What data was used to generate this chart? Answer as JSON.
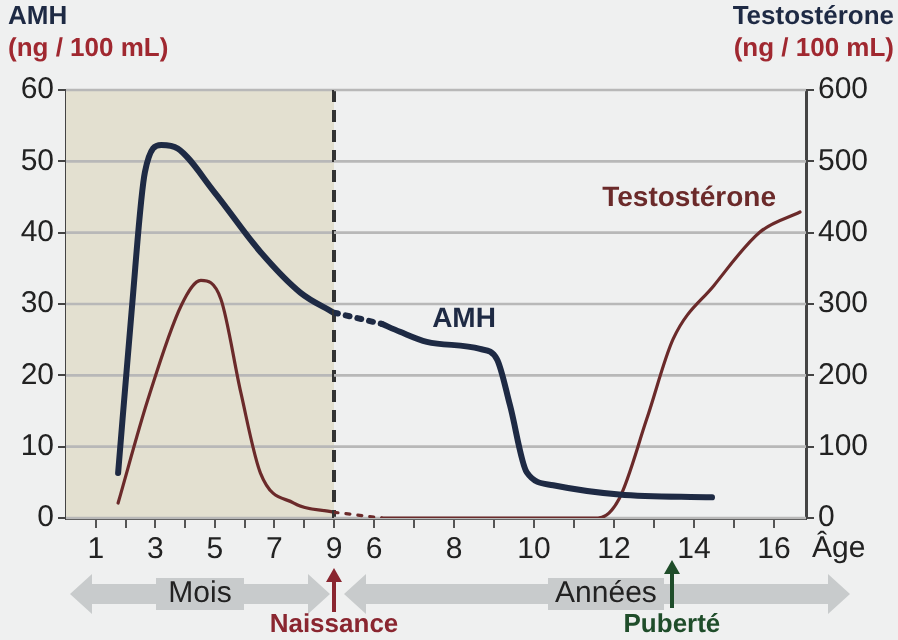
{
  "chart_data": [
    {
      "type": "line",
      "ylabel": "AMH\n(ng / 100 mL)",
      "marker": "none",
      "grid": "y",
      "xlim": [
        0,
        9
      ],
      "xticks": [
        1,
        {
          "value": 2,
          "label": null
        },
        3,
        {
          "value": 4,
          "label": null
        },
        5,
        {
          "value": 6,
          "label": null
        },
        7,
        {
          "value": 8,
          "label": null
        },
        9
      ],
      "ylim": [
        0,
        60
      ],
      "yticks": [
        0,
        10,
        20,
        30,
        40,
        50,
        60
      ],
      "y2lim": [
        0,
        600
      ],
      "bands": [
        {
          "axis": "x",
          "from": 0,
          "to": 9,
          "color": "#e3e0d0"
        }
      ],
      "ref_lines": [
        {
          "axis": "x",
          "value": 9,
          "color": "#333333",
          "line_style": "dashed"
        }
      ],
      "annotations": [
        "Mois"
      ],
      "series": [
        {
          "color": "#1e2a44",
          "line_style": "solid",
          "x": [
            1.75,
            2.2,
            2.65,
            3.2,
            3.75,
            4.98,
            6.53,
            7.87,
            8.98
          ],
          "values": [
            6.3,
            28.8,
            48.5,
            52.3,
            51.8,
            45.7,
            37.3,
            31.6,
            28.8
          ]
        },
        {
          "color": "#6b2a2a",
          "axis": "y2",
          "line_style": "solid",
          "x": [
            1.75,
            2.75,
            3.87,
            4.53,
            5.2,
            5.87,
            6.53,
            7.65,
            8.98
          ],
          "values": [
            21,
            166,
            298,
            333,
            307,
            176,
            63,
            21,
            8
          ]
        }
      ]
    },
    {
      "type": "line",
      "y2label": "Testostérone\n(ng / 100 mL)",
      "xlabel": "Âge",
      "marker": "none",
      "grid": "y",
      "xlim": [
        5,
        16.8
      ],
      "xticks": [
        6,
        {
          "value": 7,
          "label": null
        },
        8,
        {
          "value": 9,
          "label": null
        },
        10,
        {
          "value": 11,
          "label": null
        },
        12,
        {
          "value": 13,
          "label": null
        },
        14,
        {
          "value": 15,
          "label": null
        },
        16
      ],
      "ylim": [
        0,
        60
      ],
      "y2lim": [
        0,
        600
      ],
      "y2ticks": [
        0,
        100,
        200,
        300,
        400,
        500,
        600
      ],
      "annotations": [
        "Naissance",
        "Années",
        "Puberté"
      ],
      "series": [
        {
          "color": "#1e2a44",
          "line_style": "dotted",
          "x": [
            5.0,
            6.2
          ],
          "values": [
            28.8,
            27.2
          ]
        },
        {
          "name": "AMH",
          "color": "#1e2a44",
          "line_style": "solid",
          "x": [
            6.2,
            6.65,
            7.32,
            8.65,
            9.07,
            9.4,
            9.82,
            10.48,
            12.13,
            14.45
          ],
          "values": [
            27.2,
            26.1,
            24.7,
            23.7,
            22.3,
            15.8,
            6.4,
            4.6,
            3.3,
            2.9
          ]
        },
        {
          "color": "#6b2a2a",
          "axis": "y2",
          "line_style": "dotted",
          "x": [
            5.0,
            6.2
          ],
          "values": [
            8,
            0
          ]
        },
        {
          "name": "Testostérone",
          "color": "#6b2a2a",
          "axis": "y2",
          "line_style": "solid",
          "x": [
            6.2,
            11.6,
            12.13,
            12.82,
            13.48,
            14.5,
            15.65,
            16.65
          ],
          "values": [
            0,
            0,
            27,
            139,
            251,
            326,
            401,
            429
          ]
        }
      ]
    }
  ]
}
